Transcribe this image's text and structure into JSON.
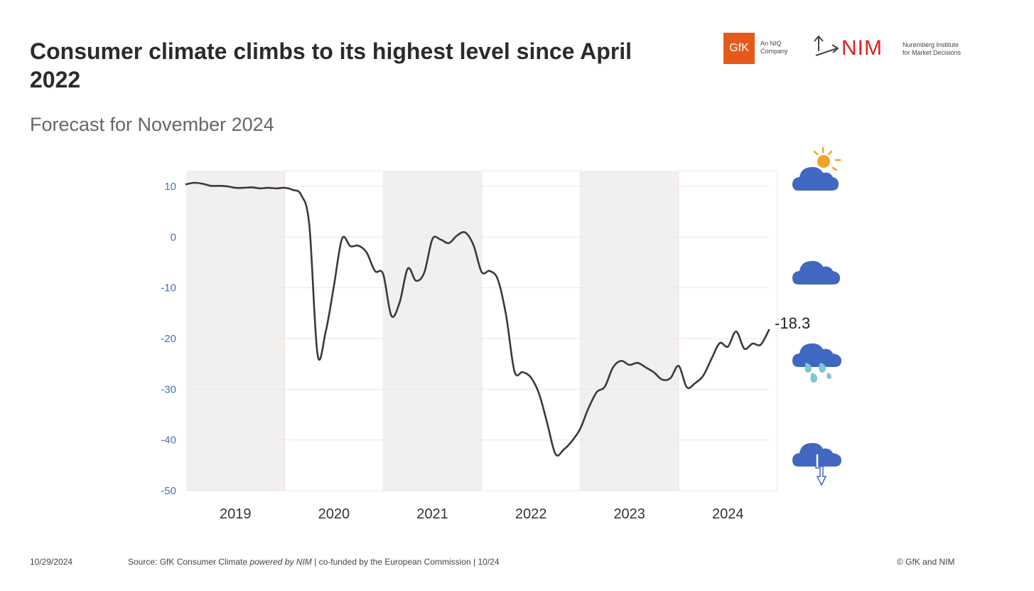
{
  "header": {
    "title": "Consumer climate climbs to its highest level since April 2022",
    "subtitle": "Forecast for November 2024"
  },
  "logos": {
    "gfk_label": "GfK",
    "gfk_sub_line1": "An NIQ",
    "gfk_sub_line2": "Company",
    "nim_label": "NIM",
    "nim_sub_line1": "Nuremberg Institute",
    "nim_sub_line2": "for Market Decisions",
    "gfk_color": "#e55a1b",
    "nim_color": "#e02020"
  },
  "weather_icons": [
    {
      "name": "sun-behind-cloud-icon"
    },
    {
      "name": "cloud-icon"
    },
    {
      "name": "rain-cloud-icon"
    },
    {
      "name": "thunderstorm-cloud-icon"
    }
  ],
  "colors": {
    "line": "#3a3a3a",
    "band": "#f0f0f0",
    "grid": "#f6e3da",
    "ytick": "#4a6fb5",
    "cloud": "#4267c0",
    "raindrop": "#7ec8d4",
    "sun": "#f3a32b"
  },
  "footer": {
    "date": "10/29/2024",
    "source_prefix": "Source: GfK Consumer Climate ",
    "source_italic": "powered by NIM",
    "source_suffix": " | co-funded by the European Commission | 10/24",
    "copyright": "© GfK and NIM"
  },
  "chart_data": {
    "type": "line",
    "title": "Consumer climate climbs to its highest level since April 2022",
    "subtitle": "Forecast for November 2024",
    "xlabel": "",
    "ylabel": "",
    "ylim": [
      -50,
      10
    ],
    "yticks": [
      10,
      0,
      -10,
      -20,
      -30,
      -40,
      -50
    ],
    "xlim": [
      2019.0,
      2024.917
    ],
    "xticks": [
      "2019",
      "2020",
      "2021",
      "2022",
      "2023",
      "2024"
    ],
    "shaded_years": [
      "2019",
      "2021",
      "2023"
    ],
    "end_label": "-18.3",
    "grid": true,
    "legend": "none",
    "series": [
      {
        "points": [
          [
            2019.0,
            10.4
          ],
          [
            2019.083,
            10.7
          ],
          [
            2019.167,
            10.5
          ],
          [
            2019.25,
            10.1
          ],
          [
            2019.333,
            10.1
          ],
          [
            2019.417,
            10.0
          ],
          [
            2019.5,
            9.7
          ],
          [
            2019.583,
            9.7
          ],
          [
            2019.667,
            9.8
          ],
          [
            2019.75,
            9.6
          ],
          [
            2019.833,
            9.7
          ],
          [
            2019.917,
            9.6
          ],
          [
            2020.0,
            9.7
          ],
          [
            2020.083,
            9.3
          ],
          [
            2020.167,
            8.3
          ],
          [
            2020.25,
            2.3
          ],
          [
            2020.333,
            -23.1
          ],
          [
            2020.417,
            -18.6
          ],
          [
            2020.5,
            -9.6
          ],
          [
            2020.583,
            -0.3
          ],
          [
            2020.667,
            -1.8
          ],
          [
            2020.75,
            -1.7
          ],
          [
            2020.833,
            -3.1
          ],
          [
            2020.917,
            -6.7
          ],
          [
            2021.0,
            -7.3
          ],
          [
            2021.083,
            -15.5
          ],
          [
            2021.167,
            -12.9
          ],
          [
            2021.25,
            -6.2
          ],
          [
            2021.333,
            -8.6
          ],
          [
            2021.417,
            -7.0
          ],
          [
            2021.5,
            -0.4
          ],
          [
            2021.583,
            -0.5
          ],
          [
            2021.667,
            -1.2
          ],
          [
            2021.75,
            0.3
          ],
          [
            2021.833,
            0.9
          ],
          [
            2021.917,
            -1.6
          ],
          [
            2022.0,
            -6.9
          ],
          [
            2022.083,
            -6.7
          ],
          [
            2022.167,
            -8.5
          ],
          [
            2022.25,
            -15.7
          ],
          [
            2022.333,
            -26.5
          ],
          [
            2022.417,
            -26.6
          ],
          [
            2022.5,
            -27.7
          ],
          [
            2022.583,
            -30.9
          ],
          [
            2022.667,
            -36.8
          ],
          [
            2022.75,
            -42.8
          ],
          [
            2022.833,
            -41.9
          ],
          [
            2022.917,
            -40.2
          ],
          [
            2023.0,
            -37.8
          ],
          [
            2023.083,
            -33.8
          ],
          [
            2023.167,
            -30.6
          ],
          [
            2023.25,
            -29.5
          ],
          [
            2023.333,
            -25.7
          ],
          [
            2023.417,
            -24.4
          ],
          [
            2023.5,
            -25.2
          ],
          [
            2023.583,
            -24.8
          ],
          [
            2023.667,
            -25.7
          ],
          [
            2023.75,
            -26.7
          ],
          [
            2023.833,
            -28.1
          ],
          [
            2023.917,
            -27.8
          ],
          [
            2024.0,
            -25.4
          ],
          [
            2024.083,
            -29.6
          ],
          [
            2024.167,
            -28.8
          ],
          [
            2024.25,
            -27.3
          ],
          [
            2024.333,
            -24.0
          ],
          [
            2024.417,
            -20.9
          ],
          [
            2024.5,
            -21.6
          ],
          [
            2024.583,
            -18.6
          ],
          [
            2024.667,
            -22.0
          ],
          [
            2024.75,
            -21.0
          ],
          [
            2024.833,
            -21.2
          ],
          [
            2024.917,
            -18.3
          ]
        ]
      }
    ]
  }
}
